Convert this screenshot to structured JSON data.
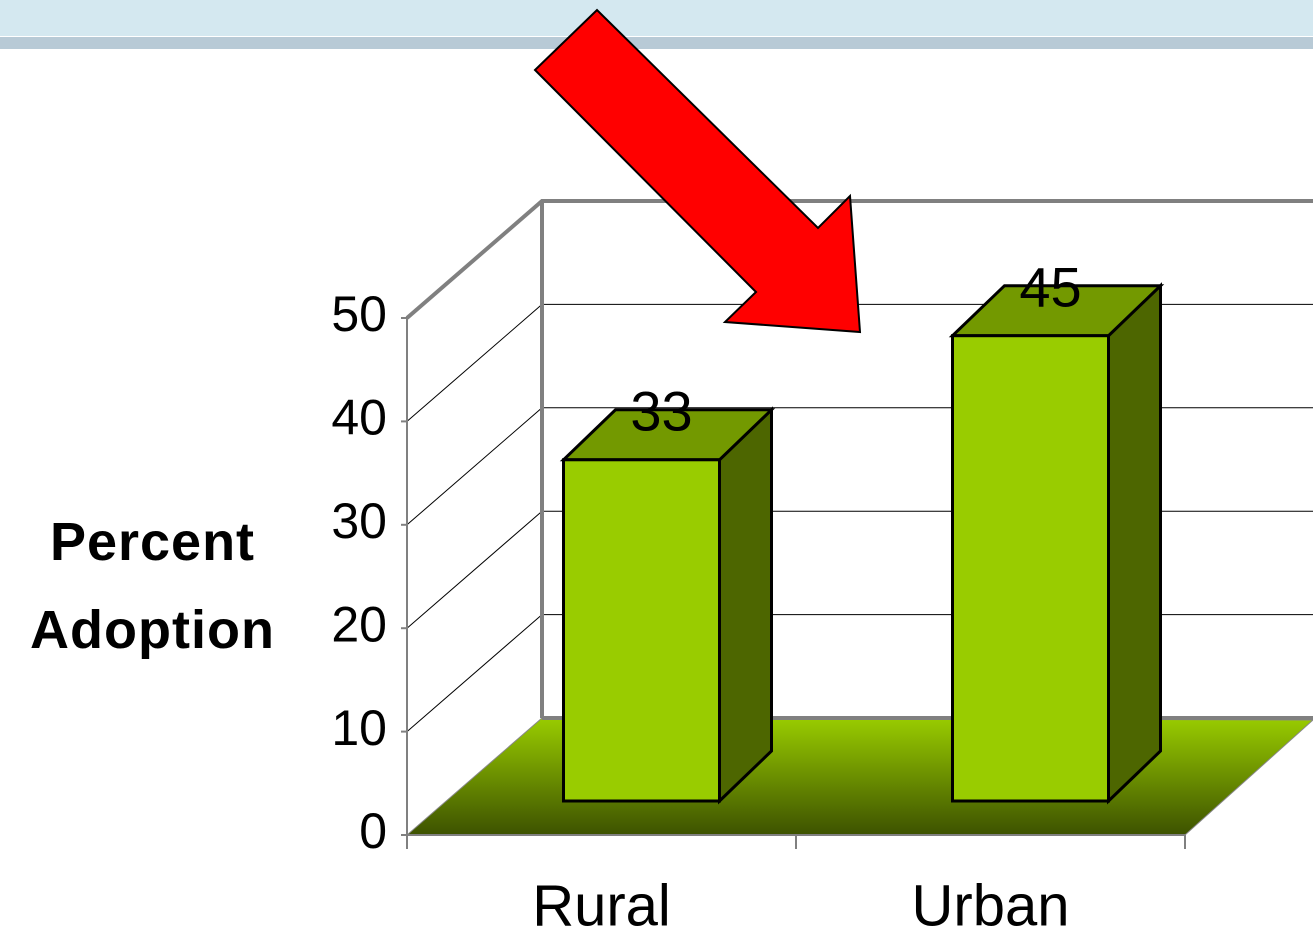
{
  "chart_data": {
    "type": "bar3d",
    "y_label": "Percent Adoption",
    "categories": [
      "Rural",
      "Urban"
    ],
    "values": [
      33,
      45
    ],
    "color": "#99cc00",
    "ylim": [
      0,
      50
    ],
    "yticks": [
      0,
      10,
      20,
      30,
      40,
      50
    ],
    "grid": true
  }
}
